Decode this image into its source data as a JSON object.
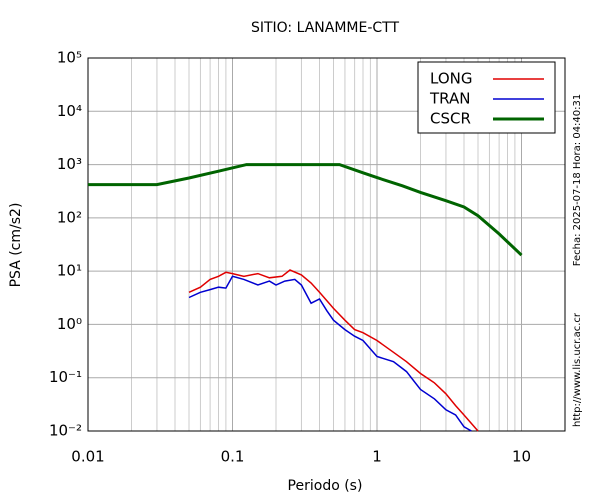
{
  "chart_data": {
    "type": "line",
    "title": "SITIO: LANAMME-CTT",
    "xlabel": "Periodo (s)",
    "ylabel": "PSA (cm/s2)",
    "xscale": "log",
    "yscale": "log",
    "grid": true,
    "legend": "upper right",
    "xlim": [
      0.01,
      20
    ],
    "xticks": [
      0.01,
      0.1,
      1,
      10
    ],
    "ylim": [
      0.01,
      100000
    ],
    "yticks": [
      {
        "value": 0.01,
        "label": "10⁻²"
      },
      {
        "value": 0.1,
        "label": "10⁻¹"
      },
      {
        "value": 1,
        "label": "10⁰"
      },
      {
        "value": 10,
        "label": "10¹"
      },
      {
        "value": 100,
        "label": "10²"
      },
      {
        "value": 1000,
        "label": "10³"
      },
      {
        "value": 10000,
        "label": "10⁴"
      },
      {
        "value": 100000,
        "label": "10⁵"
      }
    ],
    "side_texts": [
      "Fecha: 2025-07-18 Hora: 04:40:31",
      "http://www.lis.ucr.ac.cr"
    ],
    "series": [
      {
        "name": "LONG",
        "color": "#e00000",
        "width": 1.5,
        "x": [
          0.05,
          0.06,
          0.07,
          0.08,
          0.09,
          0.1,
          0.12,
          0.15,
          0.18,
          0.22,
          0.25,
          0.3,
          0.35,
          0.4,
          0.5,
          0.6,
          0.7,
          0.8,
          1,
          1.3,
          1.6,
          2,
          2.5,
          3,
          3.5,
          4,
          5
        ],
        "values": [
          4,
          5,
          7,
          8,
          9.5,
          9,
          8,
          9,
          7.5,
          8,
          10.5,
          8.5,
          6,
          4,
          2,
          1.2,
          0.8,
          0.7,
          0.5,
          0.3,
          0.2,
          0.12,
          0.08,
          0.05,
          0.03,
          0.02,
          0.01
        ]
      },
      {
        "name": "TRAN",
        "color": "#0000d0",
        "width": 1.5,
        "x": [
          0.05,
          0.06,
          0.07,
          0.08,
          0.09,
          0.1,
          0.12,
          0.15,
          0.18,
          0.2,
          0.23,
          0.27,
          0.3,
          0.35,
          0.4,
          0.45,
          0.5,
          0.6,
          0.7,
          0.8,
          1,
          1.3,
          1.6,
          2,
          2.5,
          3,
          3.5,
          4,
          4.5
        ],
        "values": [
          3.2,
          4,
          4.5,
          5,
          4.8,
          8,
          7,
          5.5,
          6.5,
          5.5,
          6.5,
          7,
          5.5,
          2.5,
          3,
          1.8,
          1.2,
          0.8,
          0.6,
          0.5,
          0.25,
          0.2,
          0.13,
          0.06,
          0.04,
          0.025,
          0.02,
          0.012,
          0.01
        ]
      },
      {
        "name": "CSCR",
        "color": "#006400",
        "width": 3,
        "x": [
          0.01,
          0.03,
          0.05,
          0.08,
          0.125,
          0.3,
          0.55,
          0.8,
          1,
          1.5,
          2,
          3,
          4,
          5,
          7,
          10
        ],
        "values": [
          420,
          420,
          560,
          750,
          1000,
          1000,
          1000,
          700,
          570,
          400,
          300,
          210,
          160,
          110,
          50,
          20
        ]
      }
    ]
  }
}
